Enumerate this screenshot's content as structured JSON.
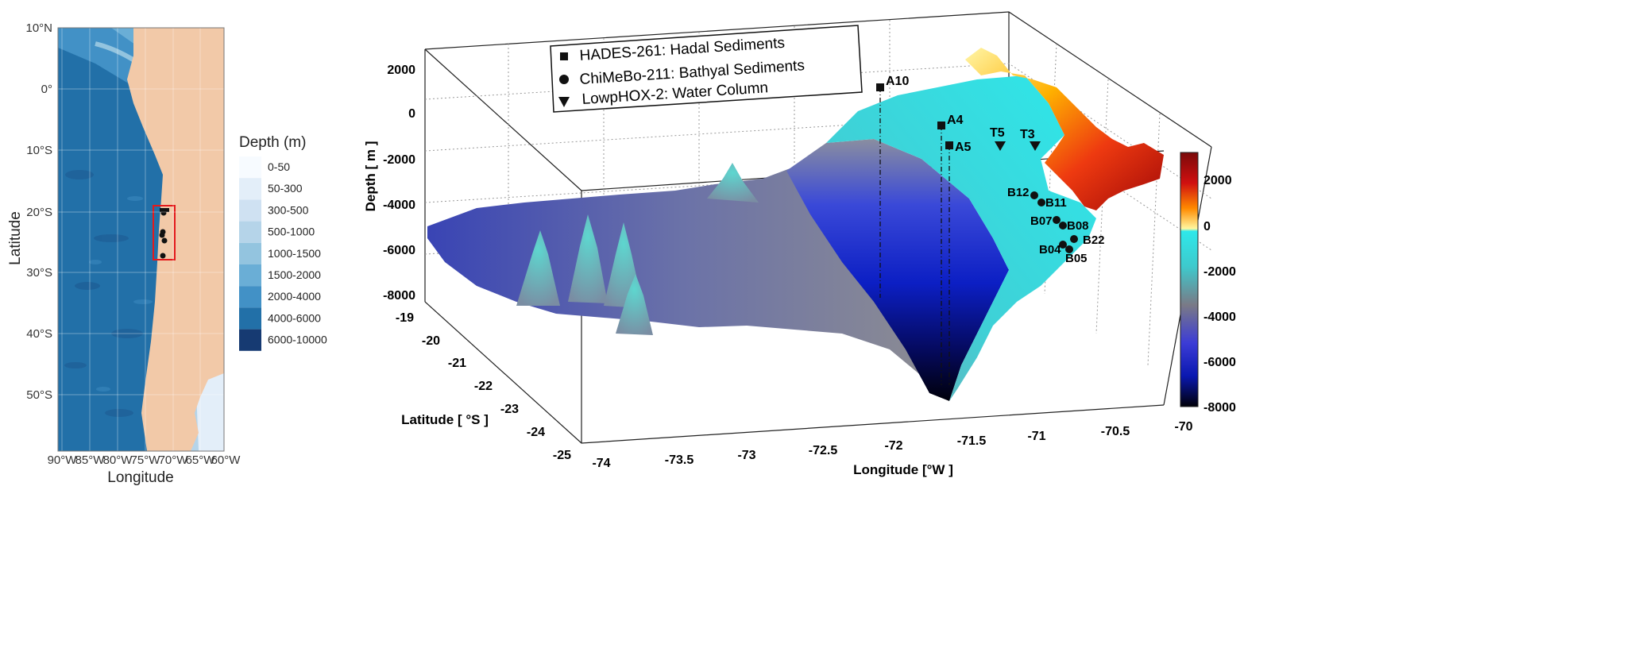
{
  "left_map": {
    "lat_ticks": [
      "10°N",
      "0°",
      "10°S",
      "20°S",
      "30°S",
      "40°S",
      "50°S"
    ],
    "lon_ticks": [
      "90°W",
      "85°W",
      "80°W",
      "75°W",
      "70°W",
      "65°W",
      "60°W"
    ],
    "xlabel": "Longitude",
    "ylabel": "Latitude",
    "legend_title": "Depth (m)",
    "legend": [
      {
        "label": "0-50",
        "color": "#f7fbff"
      },
      {
        "label": "50-300",
        "color": "#e3eef9"
      },
      {
        "label": "300-500",
        "color": "#cfe1f2"
      },
      {
        "label": "500-1000",
        "color": "#b5d4e9"
      },
      {
        "label": "1000-1500",
        "color": "#93c4df"
      },
      {
        "label": "1500-2000",
        "color": "#6aaed6"
      },
      {
        "label": "2000-4000",
        "color": "#4291c6"
      },
      {
        "label": "4000-6000",
        "color": "#2270a8"
      },
      {
        "label": "6000-10000",
        "color": "#163a72"
      }
    ],
    "land_color": "#f2c9a8",
    "highlight_color": "#e31a1c"
  },
  "right_plot": {
    "legend": [
      {
        "marker": "square",
        "label": "HADES-261: Hadal Sediments"
      },
      {
        "marker": "circle",
        "label": "ChiMeBo-211: Bathyal Sediments"
      },
      {
        "marker": "triangle-down",
        "label": "LowpHOX-2: Water Column"
      }
    ],
    "zlabel": "Depth [ m ]",
    "ylabel": "Latitude [ °S ]",
    "xlabel": "Longitude [°W ]",
    "z_ticks": [
      "2000",
      "0",
      "-2000",
      "-4000",
      "-6000",
      "-8000"
    ],
    "lat_ticks": [
      "-19",
      "-20",
      "-21",
      "-22",
      "-23",
      "-24",
      "-25"
    ],
    "lon_ticks": [
      "-74",
      "-73.5",
      "-73",
      "-72.5",
      "-72",
      "-71.5",
      "-71",
      "-70.5",
      "-70"
    ],
    "colorbar_ticks": [
      "2000",
      "0",
      "-2000",
      "-4000",
      "-6000",
      "-8000"
    ],
    "stations": [
      {
        "label": "A10",
        "type": "square"
      },
      {
        "label": "A4",
        "type": "square"
      },
      {
        "label": "A5",
        "type": "square"
      },
      {
        "label": "T5",
        "type": "triangle"
      },
      {
        "label": "T3",
        "type": "triangle"
      },
      {
        "label": "B12",
        "type": "circle"
      },
      {
        "label": "B11",
        "type": "circle"
      },
      {
        "label": "B07",
        "type": "circle"
      },
      {
        "label": "B08",
        "type": "circle"
      },
      {
        "label": "B22",
        "type": "circle"
      },
      {
        "label": "B04",
        "type": "circle"
      },
      {
        "label": "B05",
        "type": "circle"
      }
    ]
  }
}
